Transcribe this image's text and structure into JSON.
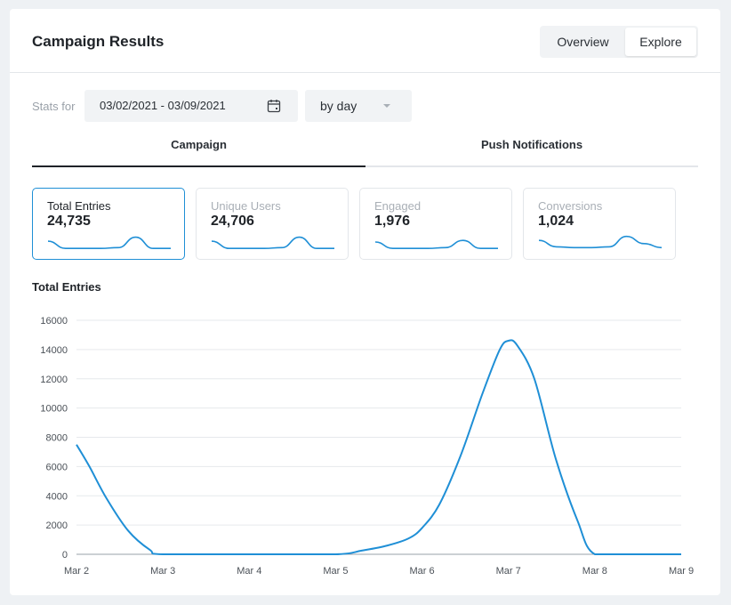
{
  "header": {
    "title": "Campaign Results",
    "segments": [
      "Overview",
      "Explore"
    ],
    "active_segment": "Explore"
  },
  "filters": {
    "stats_label": "Stats for",
    "date_range": "03/02/2021 - 03/09/2021",
    "granularity": "by day"
  },
  "tabs": [
    {
      "label": "Campaign",
      "active": true
    },
    {
      "label": "Push Notifications",
      "active": false
    }
  ],
  "metrics": [
    {
      "label": "Total Entries",
      "value": "24,735",
      "active": true
    },
    {
      "label": "Unique Users",
      "value": "24,706",
      "active": false
    },
    {
      "label": "Engaged",
      "value": "1,976",
      "active": false
    },
    {
      "label": "Conversions",
      "value": "1,024",
      "active": false
    }
  ],
  "colors": {
    "accent": "#1f8fd6",
    "text": "#1f2328",
    "muted": "#a9afb6"
  },
  "chart_data": {
    "type": "line",
    "title": "Total Entries",
    "x": [
      "Mar 2",
      "Mar 3",
      "Mar 4",
      "Mar 5",
      "Mar 6",
      "Mar 7",
      "Mar 8",
      "Mar 9"
    ],
    "ylim": [
      0,
      16000
    ],
    "yticks": [
      0,
      2000,
      4000,
      6000,
      8000,
      10000,
      12000,
      14000,
      16000
    ],
    "grid": true,
    "series": [
      {
        "points": [
          [
            0,
            7500
          ],
          [
            0.15,
            6000
          ],
          [
            0.35,
            3800
          ],
          [
            0.6,
            1600
          ],
          [
            0.85,
            300
          ],
          [
            1,
            0
          ],
          [
            2,
            0
          ],
          [
            3,
            0
          ],
          [
            3.3,
            250
          ],
          [
            3.6,
            600
          ],
          [
            3.85,
            1100
          ],
          [
            4,
            1800
          ],
          [
            4.2,
            3400
          ],
          [
            4.45,
            6800
          ],
          [
            4.7,
            11000
          ],
          [
            4.9,
            14000
          ],
          [
            5,
            14600
          ],
          [
            5.1,
            14300
          ],
          [
            5.3,
            12000
          ],
          [
            5.55,
            6500
          ],
          [
            5.8,
            2300
          ],
          [
            6,
            0
          ],
          [
            6.5,
            0
          ],
          [
            7,
            0
          ]
        ]
      }
    ],
    "sparklines": [
      [
        0.55,
        0.1,
        0.1,
        0.1,
        0.15,
        0.8,
        0.1,
        0.1
      ],
      [
        0.55,
        0.1,
        0.1,
        0.1,
        0.15,
        0.8,
        0.1,
        0.1
      ],
      [
        0.5,
        0.1,
        0.1,
        0.1,
        0.15,
        0.6,
        0.1,
        0.1
      ],
      [
        0.6,
        0.2,
        0.15,
        0.15,
        0.2,
        0.85,
        0.4,
        0.15
      ]
    ]
  }
}
